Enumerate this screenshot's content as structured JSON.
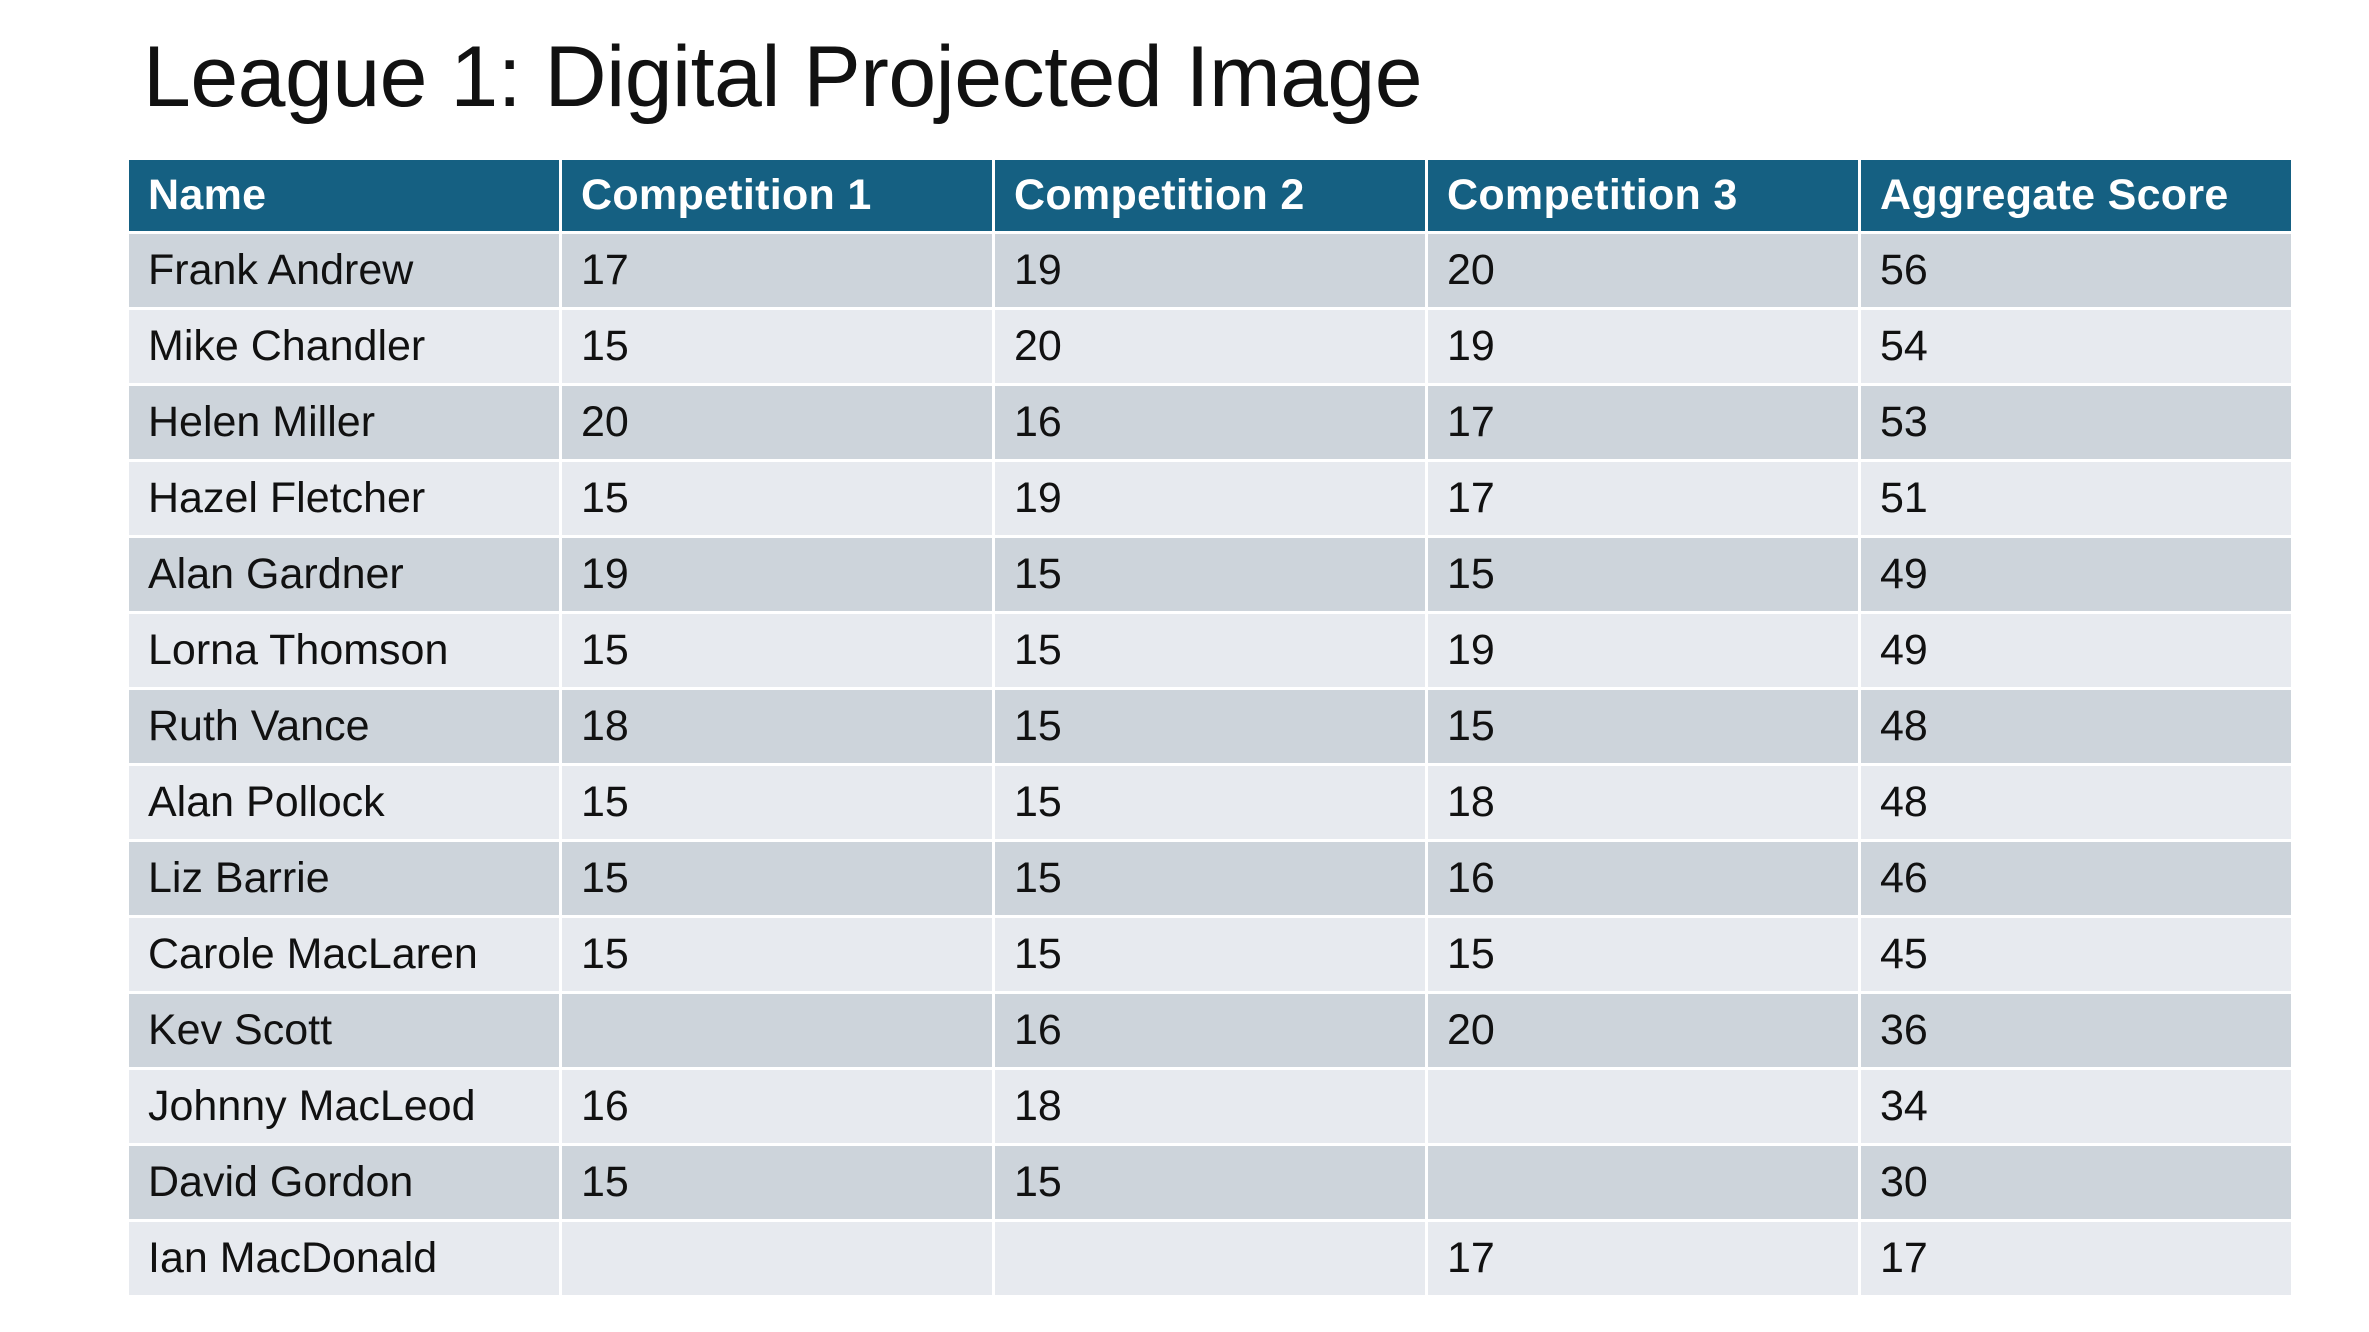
{
  "title": "League 1: Digital Projected Image",
  "table": {
    "headers": [
      "Name",
      "Competition 1",
      "Competition 2",
      "Competition 3",
      "Aggregate Score"
    ],
    "rows": [
      [
        "Frank Andrew",
        "17",
        "19",
        "20",
        "56"
      ],
      [
        "Mike Chandler",
        "15",
        "20",
        "19",
        "54"
      ],
      [
        "Helen Miller",
        "20",
        "16",
        "17",
        "53"
      ],
      [
        "Hazel Fletcher",
        "15",
        "19",
        "17",
        "51"
      ],
      [
        "Alan Gardner",
        "19",
        "15",
        "15",
        "49"
      ],
      [
        "Lorna Thomson",
        "15",
        "15",
        "19",
        "49"
      ],
      [
        "Ruth Vance",
        "18",
        "15",
        "15",
        "48"
      ],
      [
        "Alan Pollock",
        "15",
        "15",
        "18",
        "48"
      ],
      [
        "Liz Barrie",
        "15",
        "15",
        "16",
        "46"
      ],
      [
        "Carole MacLaren",
        "15",
        "15",
        "15",
        "45"
      ],
      [
        "Kev Scott",
        "",
        "16",
        "20",
        "36"
      ],
      [
        "Johnny MacLeod",
        "16",
        "18",
        "",
        "34"
      ],
      [
        "David Gordon",
        "15",
        "15",
        "",
        "30"
      ],
      [
        "Ian MacDonald",
        "",
        "",
        "17",
        "17"
      ]
    ]
  },
  "colors": {
    "header_background": "#156082",
    "header_text": "#ffffff",
    "row_band_dark": "#cdd4db",
    "row_band_light": "#e7eaef"
  }
}
